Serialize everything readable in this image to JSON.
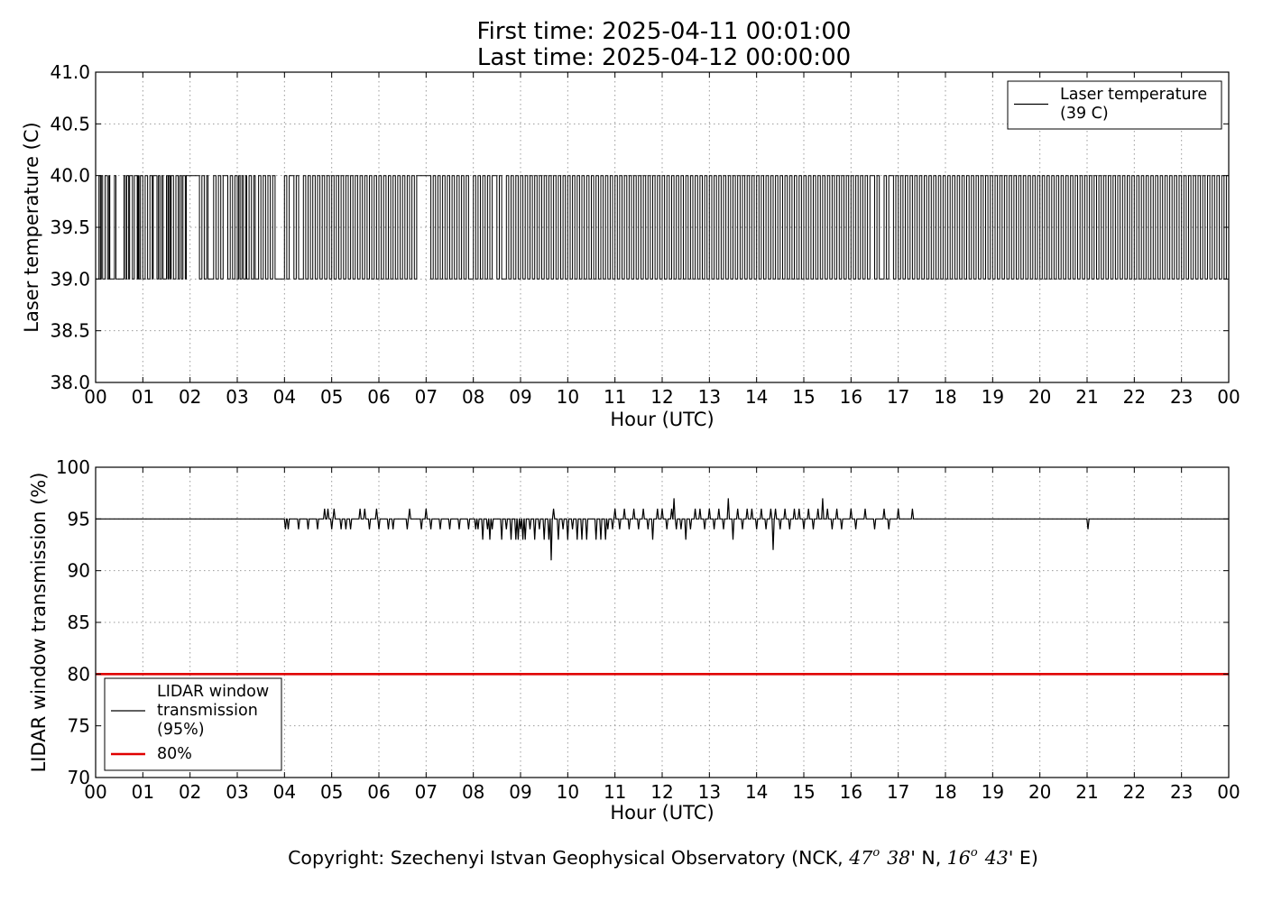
{
  "header": {
    "first_time": "First time: 2025-04-11 00:01:00",
    "last_time": "Last time: 2025-04-12 00:00:00"
  },
  "footer": {
    "copyright_prefix": "Copyright: Szechenyi Istvan Geophysical Observatory (NCK, ",
    "lat_deg": "47",
    "lat_min": "38",
    "lat_suffix": "' N, ",
    "lon_deg": "16",
    "lon_min": "43",
    "lon_suffix": "' E)",
    "degree_mark": "o"
  },
  "chart_data": [
    {
      "type": "line",
      "xlabel": "Hour (UTC)",
      "ylabel": "Laser temperature (C)",
      "xlim": [
        0,
        24
      ],
      "ylim": [
        38.0,
        41.0
      ],
      "xticks": [
        "00",
        "01",
        "02",
        "03",
        "04",
        "05",
        "06",
        "07",
        "08",
        "09",
        "10",
        "11",
        "12",
        "13",
        "14",
        "15",
        "16",
        "17",
        "18",
        "19",
        "20",
        "21",
        "22",
        "23",
        "00"
      ],
      "yticks": [
        "38.0",
        "38.5",
        "39.0",
        "39.5",
        "40.0",
        "40.5",
        "41.0"
      ],
      "grid": true,
      "legend_position": "top-right",
      "series": [
        {
          "name": "Laser temperature (39 C)",
          "legend_lines": [
            "Laser temperature",
            "(39 C)"
          ],
          "color": "#000000",
          "levels": [
            39.0,
            40.0
          ],
          "baseline": 39.0,
          "toggle_switch_times": [
            0.07,
            0.1,
            0.12,
            0.15,
            0.2,
            0.25,
            0.28,
            0.3,
            0.4,
            0.43,
            0.6,
            0.63,
            0.66,
            0.7,
            0.72,
            0.78,
            0.82,
            0.88,
            0.9,
            0.92,
            0.95,
            1.0,
            1.05,
            1.1,
            1.15,
            1.2,
            1.22,
            1.3,
            1.33,
            1.36,
            1.4,
            1.43,
            1.5,
            1.53,
            1.55,
            1.58,
            1.6,
            1.65,
            1.7,
            1.75,
            1.78,
            1.82,
            1.85,
            1.9,
            1.92,
            2.2,
            2.25,
            2.3,
            2.35,
            2.38,
            2.5,
            2.55,
            2.6,
            2.65,
            2.7,
            2.8,
            2.85,
            2.9,
            2.95,
            3.0,
            3.03,
            3.06,
            3.1,
            3.13,
            3.18,
            3.2,
            3.25,
            3.3,
            3.35,
            3.38,
            3.45,
            3.5,
            3.55,
            3.6,
            3.65,
            3.7,
            3.75,
            3.8,
            4.0,
            4.05,
            4.1,
            4.2,
            4.25,
            4.3,
            4.4,
            4.45,
            4.5,
            4.55,
            4.6,
            4.65,
            4.7,
            4.75,
            4.8,
            4.85,
            4.9,
            4.95,
            5.0,
            5.05,
            5.1,
            5.15,
            5.2,
            5.25,
            5.3,
            5.35,
            5.4,
            5.45,
            5.5,
            5.55,
            5.6,
            5.65,
            5.7,
            5.75,
            5.8,
            5.85,
            5.9,
            5.95,
            6.0,
            6.05,
            6.1,
            6.15,
            6.2,
            6.25,
            6.3,
            6.35,
            6.4,
            6.45,
            6.5,
            6.55,
            6.6,
            6.65,
            6.7,
            6.75,
            6.8,
            7.1,
            7.15,
            7.2,
            7.25,
            7.3,
            7.35,
            7.4,
            7.45,
            7.5,
            7.55,
            7.6,
            7.65,
            7.7,
            7.75,
            7.8,
            7.85,
            7.9,
            8.0,
            8.05,
            8.1,
            8.15,
            8.2,
            8.25,
            8.3,
            8.35,
            8.4,
            8.5,
            8.55,
            8.6,
            8.7,
            8.75,
            8.8,
            8.85,
            8.9,
            8.95,
            9.0,
            9.05,
            9.1,
            9.15,
            9.2,
            9.25,
            9.3,
            9.35,
            9.4,
            9.45,
            9.5,
            9.55,
            9.6,
            9.65,
            9.7,
            9.75,
            9.8,
            9.85,
            9.9,
            9.95,
            10.0,
            10.05,
            10.1,
            10.15,
            10.2,
            10.25,
            10.3,
            10.35,
            10.4,
            10.45,
            10.5,
            10.55,
            10.6,
            10.65,
            10.7,
            10.75,
            10.8,
            10.85,
            10.9,
            10.95,
            11.0,
            11.05,
            11.1,
            11.15,
            11.2,
            11.25,
            11.3,
            11.35,
            11.4,
            11.45,
            11.5,
            11.55,
            11.6,
            11.65,
            11.7,
            11.75,
            11.8,
            11.85,
            11.9,
            11.95,
            12.0,
            12.05,
            12.1,
            12.15,
            12.2,
            12.25,
            12.3,
            12.35,
            12.4,
            12.45,
            12.5,
            12.55,
            12.6,
            12.65,
            12.7,
            12.75,
            12.8,
            12.85,
            12.9,
            12.95,
            13.0,
            13.05,
            13.1,
            13.15,
            13.2,
            13.25,
            13.3,
            13.35,
            13.4,
            13.45,
            13.5,
            13.55,
            13.6,
            13.65,
            13.7,
            13.75,
            13.8,
            13.85,
            13.9,
            13.95,
            14.0,
            14.05,
            14.1,
            14.15,
            14.2,
            14.25,
            14.3,
            14.35,
            14.4,
            14.45,
            14.5,
            14.55,
            14.6,
            14.65,
            14.7,
            14.75,
            14.8,
            14.85,
            14.9,
            14.95,
            15.0,
            15.05,
            15.1,
            15.15,
            15.2,
            15.25,
            15.3,
            15.35,
            15.4,
            15.45,
            15.5,
            15.55,
            15.6,
            15.65,
            15.7,
            15.75,
            15.8,
            15.85,
            15.9,
            15.95,
            16.0,
            16.05,
            16.1,
            16.15,
            16.2,
            16.25,
            16.3,
            16.35,
            16.4,
            16.5,
            16.55,
            16.6,
            16.7,
            16.75,
            16.8,
            16.9,
            16.95,
            17.0,
            17.05,
            17.1,
            17.15,
            17.2,
            17.25,
            17.3,
            17.35,
            17.4,
            17.45,
            17.5,
            17.55,
            17.6,
            17.65,
            17.7,
            17.75,
            17.8,
            17.85,
            17.9,
            17.95,
            18.0,
            18.05,
            18.1,
            18.15,
            18.2,
            18.25,
            18.3,
            18.35,
            18.4,
            18.45,
            18.5,
            18.55,
            18.6,
            18.65,
            18.7,
            18.75,
            18.8,
            18.85,
            18.9,
            18.95,
            19.0,
            19.05,
            19.1,
            19.15,
            19.2,
            19.25,
            19.3,
            19.35,
            19.4,
            19.45,
            19.5,
            19.55,
            19.6,
            19.65,
            19.7,
            19.75,
            19.8,
            19.85,
            19.9,
            19.95,
            20.0,
            20.05,
            20.1,
            20.15,
            20.2,
            20.25,
            20.3,
            20.35,
            20.4,
            20.45,
            20.5,
            20.55,
            20.6,
            20.65,
            20.7,
            20.75,
            20.8,
            20.85,
            20.9,
            20.95,
            21.0,
            21.05,
            21.1,
            21.15,
            21.2,
            21.25,
            21.3,
            21.35,
            21.4,
            21.45,
            21.5,
            21.55,
            21.6,
            21.65,
            21.7,
            21.75,
            21.8,
            21.85,
            21.9,
            21.95,
            22.0,
            22.05,
            22.1,
            22.15,
            22.2,
            22.25,
            22.3,
            22.35,
            22.4,
            22.45,
            22.5,
            22.55,
            22.6,
            22.65,
            22.7,
            22.75,
            22.8,
            22.85,
            22.9,
            22.95,
            23.0,
            23.05,
            23.1,
            23.15,
            23.2,
            23.25,
            23.3,
            23.35,
            23.4,
            23.45,
            23.5,
            23.55,
            23.6,
            23.65,
            23.7,
            23.75,
            23.8,
            23.85,
            23.9,
            23.95
          ]
        }
      ]
    },
    {
      "type": "line",
      "xlabel": "Hour (UTC)",
      "ylabel": "LIDAR window transmission (%)",
      "xlim": [
        0,
        24
      ],
      "ylim": [
        70,
        100
      ],
      "xticks": [
        "00",
        "01",
        "02",
        "03",
        "04",
        "05",
        "06",
        "07",
        "08",
        "09",
        "10",
        "11",
        "12",
        "13",
        "14",
        "15",
        "16",
        "17",
        "18",
        "19",
        "20",
        "21",
        "22",
        "23",
        "00"
      ],
      "yticks": [
        "70",
        "75",
        "80",
        "85",
        "90",
        "95",
        "100"
      ],
      "grid": true,
      "legend_position": "bottom-left",
      "series": [
        {
          "name": "LIDAR window transmission (95%)",
          "legend_lines": [
            "LIDAR window",
            "transmission",
            "(95%)"
          ],
          "color": "#000000",
          "baseline": 95,
          "deviations": [
            [
              4.02,
              94
            ],
            [
              4.08,
              94
            ],
            [
              4.15,
              95
            ],
            [
              4.3,
              94
            ],
            [
              4.5,
              94
            ],
            [
              4.7,
              94
            ],
            [
              4.85,
              96
            ],
            [
              4.92,
              96
            ],
            [
              5.0,
              94
            ],
            [
              5.05,
              96
            ],
            [
              5.2,
              94
            ],
            [
              5.3,
              94
            ],
            [
              5.4,
              94
            ],
            [
              5.6,
              96
            ],
            [
              5.7,
              96
            ],
            [
              5.8,
              94
            ],
            [
              5.95,
              96
            ],
            [
              6.0,
              94
            ],
            [
              6.2,
              94
            ],
            [
              6.3,
              94
            ],
            [
              6.6,
              94
            ],
            [
              6.65,
              96
            ],
            [
              6.9,
              94
            ],
            [
              7.0,
              96
            ],
            [
              7.1,
              94
            ],
            [
              7.3,
              94
            ],
            [
              7.5,
              94
            ],
            [
              7.7,
              94
            ],
            [
              7.9,
              94
            ],
            [
              8.05,
              94
            ],
            [
              8.1,
              94
            ],
            [
              8.2,
              93
            ],
            [
              8.3,
              94
            ],
            [
              8.35,
              93
            ],
            [
              8.4,
              94
            ],
            [
              8.5,
              95
            ],
            [
              8.6,
              93
            ],
            [
              8.7,
              94
            ],
            [
              8.8,
              93
            ],
            [
              8.9,
              93
            ],
            [
              8.95,
              93
            ],
            [
              9.0,
              94
            ],
            [
              9.05,
              93
            ],
            [
              9.1,
              93
            ],
            [
              9.2,
              94
            ],
            [
              9.3,
              93
            ],
            [
              9.4,
              94
            ],
            [
              9.5,
              93
            ],
            [
              9.6,
              93
            ],
            [
              9.65,
              91
            ],
            [
              9.7,
              96
            ],
            [
              9.8,
              93
            ],
            [
              9.9,
              94
            ],
            [
              10.0,
              93
            ],
            [
              10.1,
              94
            ],
            [
              10.2,
              93
            ],
            [
              10.3,
              93
            ],
            [
              10.4,
              93
            ],
            [
              10.6,
              93
            ],
            [
              10.7,
              93
            ],
            [
              10.8,
              93
            ],
            [
              10.85,
              94
            ],
            [
              10.95,
              94
            ],
            [
              11.0,
              96
            ],
            [
              11.1,
              94
            ],
            [
              11.2,
              96
            ],
            [
              11.3,
              94
            ],
            [
              11.4,
              96
            ],
            [
              11.5,
              94
            ],
            [
              11.6,
              96
            ],
            [
              11.7,
              94
            ],
            [
              11.8,
              93
            ],
            [
              11.9,
              96
            ],
            [
              12.0,
              96
            ],
            [
              12.1,
              94
            ],
            [
              12.2,
              96
            ],
            [
              12.25,
              97
            ],
            [
              12.3,
              94
            ],
            [
              12.4,
              94
            ],
            [
              12.5,
              93
            ],
            [
              12.6,
              94
            ],
            [
              12.7,
              96
            ],
            [
              12.8,
              96
            ],
            [
              12.9,
              94
            ],
            [
              13.0,
              96
            ],
            [
              13.1,
              94
            ],
            [
              13.2,
              96
            ],
            [
              13.3,
              94
            ],
            [
              13.4,
              97
            ],
            [
              13.5,
              93
            ],
            [
              13.6,
              96
            ],
            [
              13.7,
              94
            ],
            [
              13.8,
              96
            ],
            [
              13.9,
              96
            ],
            [
              14.0,
              94
            ],
            [
              14.1,
              96
            ],
            [
              14.2,
              94
            ],
            [
              14.3,
              96
            ],
            [
              14.35,
              92
            ],
            [
              14.4,
              96
            ],
            [
              14.5,
              94
            ],
            [
              14.6,
              96
            ],
            [
              14.7,
              94
            ],
            [
              14.8,
              96
            ],
            [
              14.9,
              96
            ],
            [
              15.0,
              94
            ],
            [
              15.1,
              96
            ],
            [
              15.2,
              94
            ],
            [
              15.3,
              96
            ],
            [
              15.4,
              97
            ],
            [
              15.5,
              96
            ],
            [
              15.6,
              94
            ],
            [
              15.7,
              96
            ],
            [
              15.8,
              94
            ],
            [
              16.0,
              96
            ],
            [
              16.1,
              94
            ],
            [
              16.3,
              96
            ],
            [
              16.5,
              94
            ],
            [
              16.7,
              96
            ],
            [
              16.8,
              94
            ],
            [
              17.0,
              96
            ],
            [
              17.3,
              96
            ],
            [
              21.02,
              94
            ]
          ]
        },
        {
          "name": "80%",
          "legend_lines": [
            "80%"
          ],
          "color": "#e00000",
          "constant": 80
        }
      ]
    }
  ]
}
